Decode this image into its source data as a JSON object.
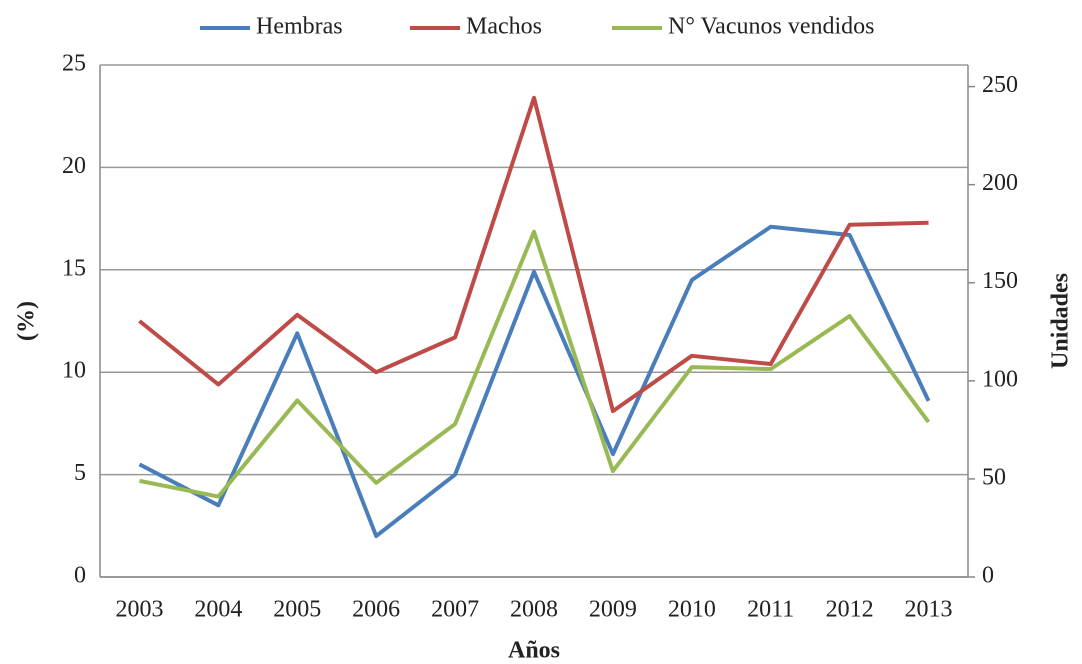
{
  "chart_data": {
    "type": "line",
    "categories": [
      "2003",
      "2004",
      "2005",
      "2006",
      "2007",
      "2008",
      "2009",
      "2010",
      "2011",
      "2012",
      "2013"
    ],
    "series": [
      {
        "name": "Hembras",
        "color": "#4a7ebb",
        "values": [
          5.5,
          3.5,
          11.9,
          2.0,
          5.0,
          14.9,
          6.0,
          14.5,
          17.1,
          16.7,
          8.6
        ]
      },
      {
        "name": "Machos",
        "color": "#be4b48",
        "values": [
          12.5,
          9.4,
          12.8,
          10.0,
          11.7,
          23.4,
          8.1,
          10.8,
          10.4,
          17.2,
          17.3
        ]
      },
      {
        "name": "N° Vacunos vendidos",
        "color": "#98b954",
        "axis": "y2",
        "values": [
          49,
          41,
          90,
          48,
          78,
          176,
          54,
          107,
          106,
          133,
          79
        ]
      }
    ],
    "x_label": "Años",
    "y_label": "(%)",
    "y2_label": "Unidades",
    "ylim": [
      0,
      25
    ],
    "yticks": [
      0,
      5,
      10,
      15,
      20,
      25
    ],
    "y2lim": [
      0,
      261
    ],
    "y2ticks": [
      0,
      50,
      100,
      150,
      200,
      250
    ],
    "grid": true,
    "legend": "top"
  }
}
